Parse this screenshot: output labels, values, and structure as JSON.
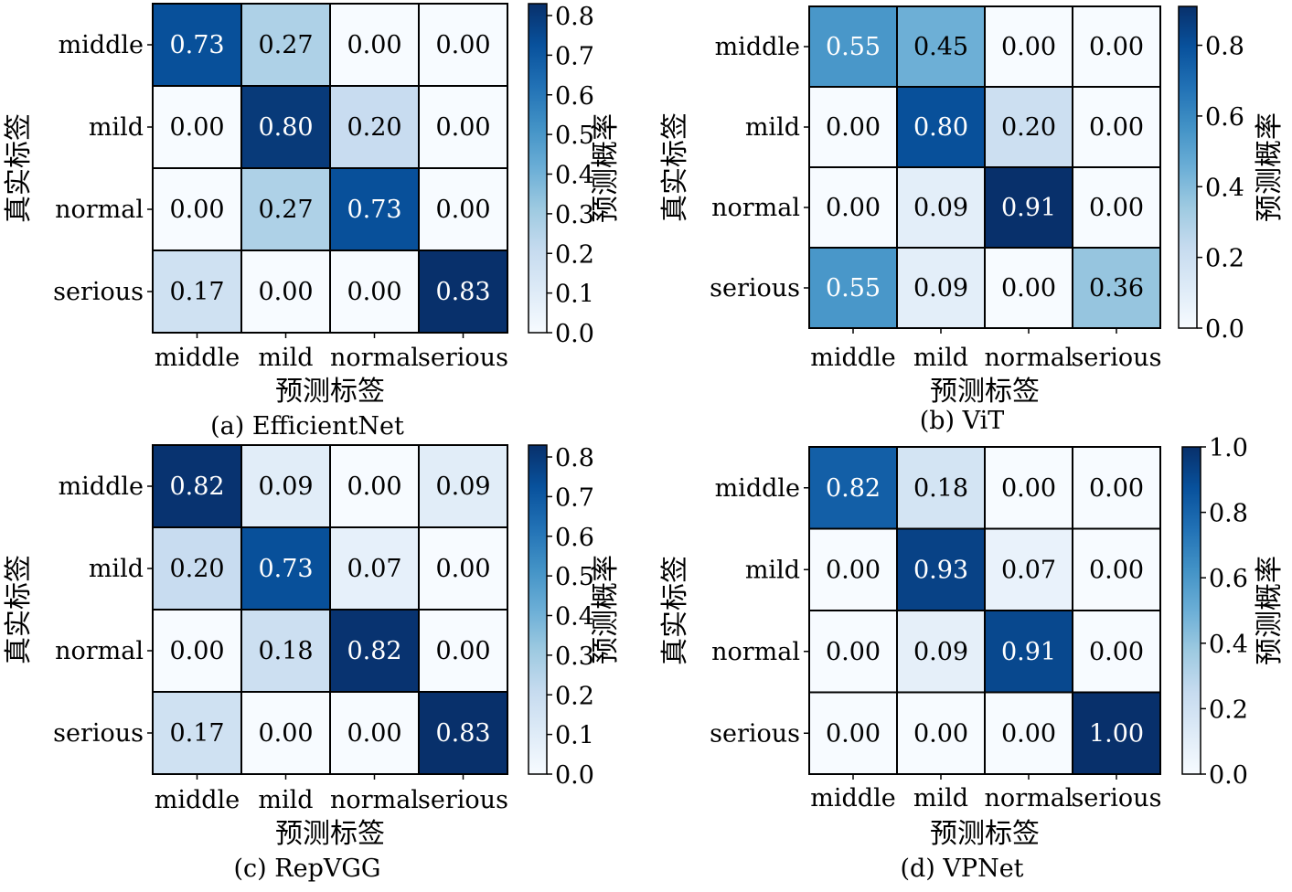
{
  "colormap": {
    "name": "Blues",
    "stops": [
      "#f7fbff",
      "#deebf7",
      "#c6dbef",
      "#9ecae1",
      "#6baed6",
      "#4292c6",
      "#2171b5",
      "#08519c",
      "#08306b"
    ]
  },
  "chart_data": [
    {
      "type": "heatmap",
      "caption": "(a) EfficientNet",
      "xlabel": "预测标签",
      "ylabel": "真实标签",
      "colorbar_label": "预测概率",
      "x_categories": [
        "middle",
        "mild",
        "normal",
        "serious"
      ],
      "y_categories": [
        "middle",
        "mild",
        "normal",
        "serious"
      ],
      "values": [
        [
          0.73,
          0.27,
          0.0,
          0.0
        ],
        [
          0.0,
          0.8,
          0.2,
          0.0
        ],
        [
          0.0,
          0.27,
          0.73,
          0.0
        ],
        [
          0.17,
          0.0,
          0.0,
          0.83
        ]
      ],
      "value_labels": [
        [
          "0.73",
          "0.27",
          "0.00",
          "0.00"
        ],
        [
          "0.00",
          "0.80",
          "0.20",
          "0.00"
        ],
        [
          "0.00",
          "0.27",
          "0.73",
          "0.00"
        ],
        [
          "0.17",
          "0.00",
          "0.00",
          "0.83"
        ]
      ],
      "colorbar_range": [
        0,
        0.83
      ],
      "colorbar_ticks": [
        0.0,
        0.1,
        0.2,
        0.3,
        0.4,
        0.5,
        0.6,
        0.7,
        0.8
      ],
      "colorbar_tick_labels": [
        "0.0",
        "0.1",
        "0.2",
        "0.3",
        "0.4",
        "0.5",
        "0.6",
        "0.7",
        "0.8"
      ]
    },
    {
      "type": "heatmap",
      "caption": "(b) ViT",
      "xlabel": "预测标签",
      "ylabel": "真实标签",
      "colorbar_label": "预测概率",
      "x_categories": [
        "middle",
        "mild",
        "normal",
        "serious"
      ],
      "y_categories": [
        "middle",
        "mild",
        "normal",
        "serious"
      ],
      "values": [
        [
          0.55,
          0.45,
          0.0,
          0.0
        ],
        [
          0.0,
          0.8,
          0.2,
          0.0
        ],
        [
          0.0,
          0.09,
          0.91,
          0.0
        ],
        [
          0.55,
          0.09,
          0.0,
          0.36
        ]
      ],
      "value_labels": [
        [
          "0.55",
          "0.45",
          "0.00",
          "0.00"
        ],
        [
          "0.00",
          "0.80",
          "0.20",
          "0.00"
        ],
        [
          "0.00",
          "0.09",
          "0.91",
          "0.00"
        ],
        [
          "0.55",
          "0.09",
          "0.00",
          "0.36"
        ]
      ],
      "colorbar_range": [
        0,
        0.91
      ],
      "colorbar_ticks": [
        0.0,
        0.2,
        0.4,
        0.6,
        0.8
      ],
      "colorbar_tick_labels": [
        "0.0",
        "0.2",
        "0.4",
        "0.6",
        "0.8"
      ]
    },
    {
      "type": "heatmap",
      "caption": "(c) RepVGG",
      "xlabel": "预测标签",
      "ylabel": "真实标签",
      "colorbar_label": "预测概率",
      "x_categories": [
        "middle",
        "mild",
        "normal",
        "serious"
      ],
      "y_categories": [
        "middle",
        "mild",
        "normal",
        "serious"
      ],
      "values": [
        [
          0.82,
          0.09,
          0.0,
          0.09
        ],
        [
          0.2,
          0.73,
          0.07,
          0.0
        ],
        [
          0.0,
          0.18,
          0.82,
          0.0
        ],
        [
          0.17,
          0.0,
          0.0,
          0.83
        ]
      ],
      "value_labels": [
        [
          "0.82",
          "0.09",
          "0.00",
          "0.09"
        ],
        [
          "0.20",
          "0.73",
          "0.07",
          "0.00"
        ],
        [
          "0.00",
          "0.18",
          "0.82",
          "0.00"
        ],
        [
          "0.17",
          "0.00",
          "0.00",
          "0.83"
        ]
      ],
      "colorbar_range": [
        0,
        0.83
      ],
      "colorbar_ticks": [
        0.0,
        0.1,
        0.2,
        0.3,
        0.4,
        0.5,
        0.6,
        0.7,
        0.8
      ],
      "colorbar_tick_labels": [
        "0.0",
        "0.1",
        "0.2",
        "0.3",
        "0.4",
        "0.5",
        "0.6",
        "0.7",
        "0.8"
      ]
    },
    {
      "type": "heatmap",
      "caption": "(d) VPNet",
      "xlabel": "预测标签",
      "ylabel": "真实标签",
      "colorbar_label": "预测概率",
      "x_categories": [
        "middle",
        "mild",
        "normal",
        "serious"
      ],
      "y_categories": [
        "middle",
        "mild",
        "normal",
        "serious"
      ],
      "values": [
        [
          0.82,
          0.18,
          0.0,
          0.0
        ],
        [
          0.0,
          0.93,
          0.07,
          0.0
        ],
        [
          0.0,
          0.09,
          0.91,
          0.0
        ],
        [
          0.0,
          0.0,
          0.0,
          1.0
        ]
      ],
      "value_labels": [
        [
          "0.82",
          "0.18",
          "0.00",
          "0.00"
        ],
        [
          "0.00",
          "0.93",
          "0.07",
          "0.00"
        ],
        [
          "0.00",
          "0.09",
          "0.91",
          "0.00"
        ],
        [
          "0.00",
          "0.00",
          "0.00",
          "1.00"
        ]
      ],
      "colorbar_range": [
        0,
        1.0
      ],
      "colorbar_ticks": [
        0.0,
        0.2,
        0.4,
        0.6,
        0.8,
        1.0
      ],
      "colorbar_tick_labels": [
        "0.0",
        "0.2",
        "0.4",
        "0.6",
        "0.8",
        "1.0"
      ]
    }
  ]
}
